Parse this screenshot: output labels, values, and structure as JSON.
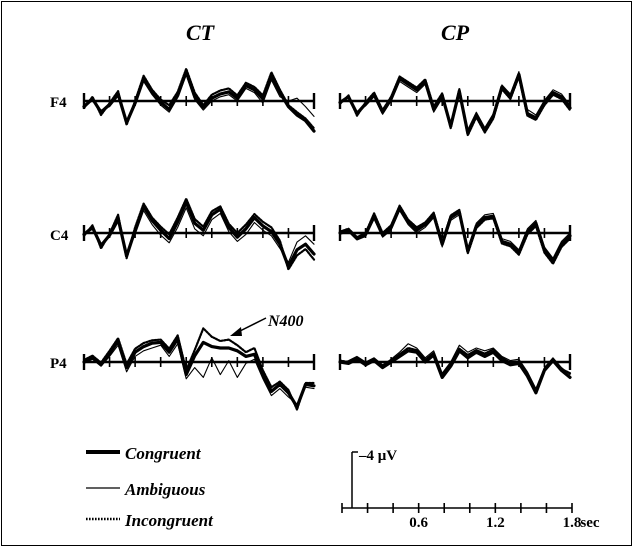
{
  "chart_data": {
    "type": "line",
    "y_polarity": "negative-up",
    "panels": [
      {
        "column_title": "CT",
        "rows": [
          "F4",
          "C4",
          "P4"
        ]
      },
      {
        "column_title": "CP",
        "rows": [
          "F4",
          "C4",
          "P4"
        ]
      }
    ],
    "row_labels": [
      "F4",
      "C4",
      "P4"
    ],
    "column_titles": [
      "CT",
      "CP"
    ],
    "x_unit": "sec",
    "x_range": [
      0,
      1.8
    ],
    "x_ticks": [
      0,
      0.2,
      0.4,
      0.6,
      0.8,
      1.0,
      1.2,
      1.4,
      1.6,
      1.8
    ],
    "x_tick_labels": [
      "0.6",
      "1.2",
      "1.8"
    ],
    "y_scale_label": "–4 μV",
    "y_scale_value": -4,
    "annotation": "N400",
    "legend": [
      {
        "name": "Congruent",
        "style": "thick-solid"
      },
      {
        "name": "Ambiguous",
        "style": "thin-solid"
      },
      {
        "name": "Incongruent",
        "style": "dotted"
      }
    ],
    "x": [
      0,
      0.0667,
      0.1333,
      0.2,
      0.2667,
      0.3333,
      0.4,
      0.4667,
      0.5333,
      0.6,
      0.6667,
      0.7333,
      0.8,
      0.8667,
      0.9333,
      1.0,
      1.0667,
      1.1333,
      1.2,
      1.2667,
      1.3333,
      1.4,
      1.4667,
      1.5333,
      1.6,
      1.6667,
      1.7333,
      1.8
    ],
    "series": [
      {
        "panel": "CT",
        "row": "F4",
        "name": "Congruent",
        "values": [
          0.8,
          -0.3,
          1.6,
          0.5,
          -1.0,
          3.1,
          0.3,
          -3.2,
          -1.2,
          0.2,
          1.2,
          -0.8,
          -4.2,
          -0.6,
          0.9,
          -0.4,
          -1.0,
          -1.3,
          -0.4,
          -2.2,
          -1.6,
          -0.3,
          -3.6,
          -1.2,
          0.8,
          2.0,
          2.8,
          4.3
        ]
      },
      {
        "panel": "CT",
        "row": "F4",
        "name": "Ambiguous",
        "values": [
          0.6,
          -0.1,
          1.3,
          0.8,
          -0.7,
          3.0,
          0.5,
          -2.8,
          -0.9,
          0.6,
          1.6,
          -0.5,
          -3.7,
          -0.2,
          1.3,
          0.0,
          -0.6,
          -0.9,
          0.0,
          -1.8,
          -1.2,
          0.3,
          -3.0,
          -0.6,
          0.0,
          -0.4,
          0.8,
          2.2
        ]
      },
      {
        "panel": "CT",
        "row": "F4",
        "name": "Incongruent",
        "values": [
          1.0,
          -0.6,
          2.0,
          0.3,
          -1.4,
          3.4,
          0.0,
          -3.6,
          -1.6,
          -0.2,
          0.6,
          -1.3,
          -4.6,
          -1.2,
          0.6,
          -0.9,
          -1.5,
          -1.8,
          -0.8,
          -2.6,
          -2.0,
          -0.8,
          -4.1,
          -1.6,
          0.6,
          1.6,
          2.5,
          3.9
        ]
      },
      {
        "panel": "CT",
        "row": "C4",
        "name": "Congruent",
        "values": [
          0.2,
          -0.8,
          1.8,
          0.3,
          -2.1,
          3.3,
          -0.4,
          -3.8,
          -1.8,
          -0.4,
          0.8,
          -1.6,
          -4.4,
          -1.4,
          -0.4,
          -2.6,
          -3.4,
          -0.8,
          0.6,
          -0.6,
          -2.2,
          -1.0,
          -0.2,
          1.6,
          4.8,
          2.4,
          1.6,
          3.0
        ]
      },
      {
        "panel": "CT",
        "row": "C4",
        "name": "Ambiguous",
        "values": [
          0.0,
          -0.5,
          1.5,
          0.6,
          -1.6,
          3.0,
          0.2,
          -3.2,
          -1.2,
          0.3,
          1.4,
          -0.8,
          -3.6,
          -0.6,
          0.4,
          -1.9,
          -2.8,
          -0.2,
          1.2,
          0.2,
          -1.5,
          -0.4,
          0.4,
          2.2,
          4.2,
          1.3,
          0.4,
          1.6
        ]
      },
      {
        "panel": "CT",
        "row": "C4",
        "name": "Incongruent",
        "values": [
          0.4,
          -1.1,
          2.2,
          0.1,
          -2.6,
          3.6,
          -0.8,
          -4.2,
          -2.2,
          -0.9,
          0.2,
          -2.2,
          -4.9,
          -2.0,
          -0.9,
          -3.1,
          -3.8,
          -1.3,
          0.0,
          -1.2,
          -2.7,
          -1.6,
          -0.8,
          1.1,
          5.2,
          3.2,
          2.3,
          3.8
        ]
      },
      {
        "panel": "CT",
        "row": "P4",
        "name": "Congruent",
        "values": [
          0.0,
          -0.6,
          0.4,
          -1.2,
          -3.0,
          0.8,
          -1.4,
          -2.2,
          -2.7,
          -2.8,
          -1.4,
          -3.3,
          1.8,
          -0.9,
          -2.8,
          -2.2,
          -2.0,
          -2.0,
          -1.6,
          -0.8,
          -1.1,
          1.8,
          4.2,
          3.2,
          4.4,
          6.4,
          3.2,
          3.4
        ]
      },
      {
        "panel": "CT",
        "row": "P4",
        "name": "Ambiguous",
        "values": [
          0.2,
          -0.4,
          0.6,
          -0.8,
          -2.4,
          1.4,
          -0.8,
          -1.6,
          -2.0,
          -2.4,
          -0.8,
          -2.6,
          2.4,
          0.8,
          2.2,
          -0.6,
          1.8,
          -0.2,
          2.2,
          0.2,
          -0.4,
          2.4,
          4.8,
          3.8,
          5.0,
          6.0,
          3.6,
          3.8
        ]
      },
      {
        "panel": "CT",
        "row": "P4",
        "name": "Incongruent",
        "values": [
          -0.3,
          -0.9,
          0.1,
          -1.6,
          -3.4,
          0.3,
          -1.9,
          -2.7,
          -3.1,
          -3.2,
          -1.9,
          -3.8,
          1.2,
          -1.7,
          -4.8,
          -3.6,
          -3.0,
          -3.2,
          -2.4,
          -1.4,
          -2.0,
          1.2,
          3.6,
          2.8,
          4.0,
          6.8,
          3.0,
          3.0
        ]
      },
      {
        "panel": "CP",
        "row": "F4",
        "name": "Congruent",
        "values": [
          0.2,
          -0.6,
          1.8,
          0.4,
          -0.9,
          1.6,
          -0.3,
          -3.2,
          -2.4,
          -1.6,
          -2.8,
          1.2,
          -0.8,
          3.6,
          -1.4,
          4.6,
          2.0,
          4.2,
          2.2,
          -2.0,
          -0.6,
          -3.8,
          1.8,
          2.4,
          0.3,
          -1.2,
          -0.6,
          1.0
        ]
      },
      {
        "panel": "CP",
        "row": "F4",
        "name": "Ambiguous",
        "values": [
          0.0,
          -0.4,
          1.5,
          0.7,
          -0.6,
          1.9,
          0.0,
          -2.8,
          -2.0,
          -1.2,
          -2.4,
          1.6,
          -0.4,
          3.3,
          -1.0,
          4.1,
          1.6,
          3.8,
          1.8,
          -2.3,
          -1.0,
          -4.2,
          1.2,
          2.0,
          -0.1,
          -1.6,
          -1.0,
          0.6
        ]
      },
      {
        "panel": "CP",
        "row": "F4",
        "name": "Incongruent",
        "values": [
          0.4,
          -0.8,
          2.1,
          0.2,
          -1.2,
          1.3,
          -0.6,
          -3.5,
          -2.7,
          -1.9,
          -3.1,
          0.8,
          -1.1,
          3.9,
          -1.7,
          4.9,
          2.3,
          4.5,
          2.5,
          -1.7,
          -0.3,
          -3.5,
          2.1,
          2.7,
          0.6,
          -0.9,
          -0.3,
          1.3
        ]
      },
      {
        "panel": "CP",
        "row": "C4",
        "name": "Congruent",
        "values": [
          0.0,
          -0.4,
          0.8,
          0.2,
          -2.4,
          0.3,
          -0.8,
          -3.6,
          -1.6,
          -0.4,
          -1.2,
          -2.6,
          1.6,
          -2.2,
          -3.0,
          2.6,
          -1.0,
          -2.2,
          -2.4,
          1.2,
          1.6,
          2.8,
          -0.2,
          -1.4,
          2.4,
          4.0,
          1.6,
          0.4
        ]
      },
      {
        "panel": "CP",
        "row": "C4",
        "name": "Ambiguous",
        "values": [
          0.2,
          -0.2,
          1.0,
          0.5,
          -2.0,
          0.6,
          -0.4,
          -3.2,
          -1.2,
          0.0,
          -0.8,
          -2.2,
          2.0,
          -1.8,
          -2.6,
          2.2,
          -1.4,
          -2.6,
          -2.8,
          0.8,
          1.2,
          2.4,
          -0.6,
          -1.8,
          2.0,
          3.6,
          1.2,
          0.0
        ]
      },
      {
        "panel": "CP",
        "row": "C4",
        "name": "Incongruent",
        "values": [
          -0.2,
          -0.6,
          0.6,
          0.0,
          -2.8,
          0.0,
          -1.1,
          -3.9,
          -1.9,
          -0.8,
          -1.5,
          -2.9,
          1.3,
          -2.5,
          -3.3,
          2.9,
          -0.7,
          -1.9,
          -2.1,
          1.5,
          1.9,
          3.1,
          0.2,
          -1.0,
          2.8,
          4.4,
          2.0,
          0.8
        ]
      },
      {
        "panel": "CP",
        "row": "P4",
        "name": "Congruent",
        "values": [
          0.0,
          0.2,
          -0.4,
          0.4,
          -0.2,
          0.8,
          0.0,
          -0.8,
          -1.6,
          -1.4,
          0.0,
          -1.0,
          2.2,
          0.6,
          -1.6,
          -0.6,
          -1.4,
          -0.8,
          -1.4,
          -0.2,
          0.4,
          0.2,
          2.0,
          4.4,
          1.2,
          -0.2,
          1.2,
          2.2
        ]
      },
      {
        "panel": "CP",
        "row": "P4",
        "name": "Ambiguous",
        "values": [
          0.2,
          -0.2,
          -0.8,
          0.0,
          -0.6,
          0.4,
          -0.4,
          -1.4,
          -2.6,
          -2.0,
          -0.6,
          -1.6,
          1.6,
          0.0,
          -2.4,
          -1.4,
          -2.0,
          -1.6,
          -2.0,
          -0.8,
          -0.2,
          -0.4,
          1.4,
          3.8,
          0.8,
          -0.6,
          0.8,
          1.8
        ]
      },
      {
        "panel": "CP",
        "row": "P4",
        "name": "Incongruent",
        "values": [
          -0.2,
          0.0,
          -0.6,
          0.2,
          -0.4,
          0.6,
          -0.2,
          -1.1,
          -2.0,
          -1.7,
          -0.3,
          -1.3,
          1.9,
          0.3,
          -1.9,
          -1.0,
          -1.7,
          -1.2,
          -1.8,
          -0.6,
          0.1,
          -0.1,
          1.7,
          4.1,
          1.0,
          -0.4,
          1.0,
          1.6
        ]
      }
    ]
  }
}
